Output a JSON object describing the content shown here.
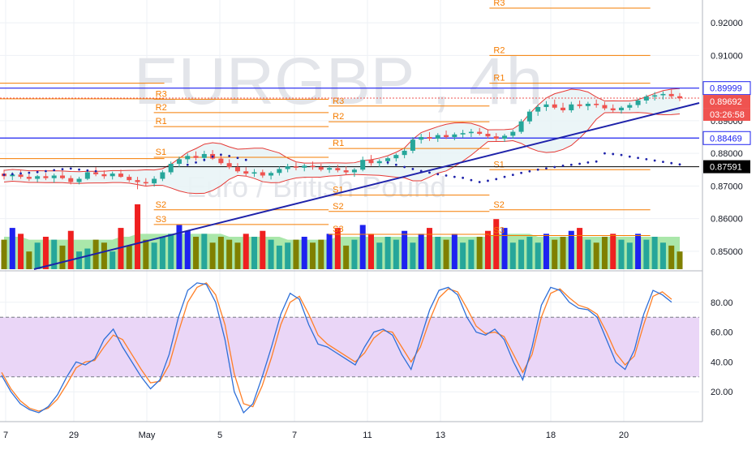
{
  "chart_data": [
    {
      "type": "candlestick",
      "watermark": {
        "symbol": "EURGBP",
        "separator": ",",
        "interval": "4h",
        "description": "Euro / British Pound"
      },
      "y_axis_ticks": [
        "0.92000",
        "0.91000",
        "0.90000",
        "0.89000",
        "0.88000",
        "0.87000",
        "0.86000",
        "0.85000"
      ],
      "ylim": [
        0.8445,
        0.927
      ],
      "x_axis_ticks": [
        "7",
        "29",
        "May",
        "5",
        "7",
        "11",
        "13",
        "18",
        "20"
      ],
      "price_labels": {
        "upper_line": "0.89999",
        "last_price": "0.89692",
        "countdown": "03:26:58",
        "lower_line": "0.88469",
        "black_line": "0.87591"
      },
      "colors": {
        "up": "#26a69a",
        "down": "#ef5350",
        "pivot_line": "#f57c00",
        "trendline": "#1e22aa",
        "bollinger": "#e53935",
        "horizontal_blue": "#1e22f0",
        "psar": "#1e22aa"
      },
      "pivots": [
        {
          "label": "R3",
          "value": 0.9245,
          "from": 0.7,
          "to": 0.93
        },
        {
          "label": "R2",
          "value": 0.91,
          "from": 0.7,
          "to": 0.93
        },
        {
          "label": "R1",
          "value": 0.9015,
          "from": 0.7,
          "to": 0.93
        },
        {
          "label": "R3",
          "value": 0.8966,
          "from": 0.22,
          "to": 0.47
        },
        {
          "label": "R2",
          "value": 0.8925,
          "from": 0.22,
          "to": 0.47
        },
        {
          "label": "R1",
          "value": 0.8882,
          "from": 0.22,
          "to": 0.47
        },
        {
          "label": "S1",
          "value": 0.8788,
          "from": 0.22,
          "to": 0.47
        },
        {
          "label": "R3",
          "value": 0.8945,
          "from": 0.47,
          "to": 0.7
        },
        {
          "label": "R2",
          "value": 0.8897,
          "from": 0.47,
          "to": 0.7
        },
        {
          "label": "R1",
          "value": 0.8815,
          "from": 0.47,
          "to": 0.7
        },
        {
          "label": "S1",
          "value": 0.875,
          "from": 0.7,
          "to": 0.93
        },
        {
          "label": "S1",
          "value": 0.8672,
          "from": 0.47,
          "to": 0.7
        },
        {
          "label": "S2",
          "value": 0.8627,
          "from": 0.22,
          "to": 0.47
        },
        {
          "label": "S2",
          "value": 0.8622,
          "from": 0.47,
          "to": 0.7
        },
        {
          "label": "S2",
          "value": 0.8627,
          "from": 0.7,
          "to": 0.93
        },
        {
          "label": "S3",
          "value": 0.8582,
          "from": 0.22,
          "to": 0.47
        },
        {
          "label": "S3",
          "value": 0.8552,
          "from": 0.47,
          "to": 0.7
        },
        {
          "label": "S3",
          "value": 0.8548,
          "from": 0.7,
          "to": 0.93
        }
      ],
      "extra_lines": [
        {
          "value": 0.9015,
          "from": 0.0,
          "to": 0.235
        },
        {
          "value": 0.8967,
          "from": 0.0,
          "to": 0.235
        },
        {
          "value": 0.8784,
          "from": 0.0,
          "to": 0.235
        }
      ],
      "candles": [
        {
          "o": 0.8738,
          "h": 0.875,
          "l": 0.872,
          "c": 0.873
        },
        {
          "o": 0.873,
          "h": 0.8742,
          "l": 0.8718,
          "c": 0.8735
        },
        {
          "o": 0.8735,
          "h": 0.8748,
          "l": 0.8722,
          "c": 0.8728
        },
        {
          "o": 0.8728,
          "h": 0.8736,
          "l": 0.8715,
          "c": 0.8722
        },
        {
          "o": 0.8722,
          "h": 0.8734,
          "l": 0.8712,
          "c": 0.873
        },
        {
          "o": 0.873,
          "h": 0.874,
          "l": 0.8718,
          "c": 0.8724
        },
        {
          "o": 0.8724,
          "h": 0.8738,
          "l": 0.871,
          "c": 0.8732
        },
        {
          "o": 0.8732,
          "h": 0.8745,
          "l": 0.872,
          "c": 0.8724
        },
        {
          "o": 0.8724,
          "h": 0.8732,
          "l": 0.8705,
          "c": 0.8712
        },
        {
          "o": 0.8712,
          "h": 0.8728,
          "l": 0.8705,
          "c": 0.8722
        },
        {
          "o": 0.8722,
          "h": 0.8748,
          "l": 0.8718,
          "c": 0.8742
        },
        {
          "o": 0.8742,
          "h": 0.8758,
          "l": 0.873,
          "c": 0.8736
        },
        {
          "o": 0.8736,
          "h": 0.8748,
          "l": 0.8722,
          "c": 0.873
        },
        {
          "o": 0.873,
          "h": 0.8744,
          "l": 0.872,
          "c": 0.8738
        },
        {
          "o": 0.8738,
          "h": 0.875,
          "l": 0.8725,
          "c": 0.8728
        },
        {
          "o": 0.8728,
          "h": 0.8735,
          "l": 0.8712,
          "c": 0.8718
        },
        {
          "o": 0.8718,
          "h": 0.8728,
          "l": 0.869,
          "c": 0.8712
        },
        {
          "o": 0.8712,
          "h": 0.8724,
          "l": 0.87,
          "c": 0.8708
        },
        {
          "o": 0.8708,
          "h": 0.873,
          "l": 0.8698,
          "c": 0.8722
        },
        {
          "o": 0.8722,
          "h": 0.8748,
          "l": 0.8715,
          "c": 0.8742
        },
        {
          "o": 0.8742,
          "h": 0.8775,
          "l": 0.8735,
          "c": 0.8768
        },
        {
          "o": 0.8768,
          "h": 0.879,
          "l": 0.8758,
          "c": 0.8782
        },
        {
          "o": 0.8782,
          "h": 0.88,
          "l": 0.877,
          "c": 0.8792
        },
        {
          "o": 0.8792,
          "h": 0.8806,
          "l": 0.8778,
          "c": 0.8786
        },
        {
          "o": 0.8786,
          "h": 0.8808,
          "l": 0.8775,
          "c": 0.8798
        },
        {
          "o": 0.8798,
          "h": 0.881,
          "l": 0.878,
          "c": 0.8784
        },
        {
          "o": 0.8784,
          "h": 0.8795,
          "l": 0.8765,
          "c": 0.877
        },
        {
          "o": 0.877,
          "h": 0.8782,
          "l": 0.8752,
          "c": 0.8758
        },
        {
          "o": 0.8758,
          "h": 0.877,
          "l": 0.874,
          "c": 0.8745
        },
        {
          "o": 0.8745,
          "h": 0.8758,
          "l": 0.873,
          "c": 0.8738
        },
        {
          "o": 0.8738,
          "h": 0.8752,
          "l": 0.8728,
          "c": 0.8742
        },
        {
          "o": 0.8742,
          "h": 0.875,
          "l": 0.8725,
          "c": 0.8732
        },
        {
          "o": 0.8732,
          "h": 0.8745,
          "l": 0.872,
          "c": 0.874
        },
        {
          "o": 0.874,
          "h": 0.876,
          "l": 0.8732,
          "c": 0.8752
        },
        {
          "o": 0.8752,
          "h": 0.8768,
          "l": 0.8742,
          "c": 0.876
        },
        {
          "o": 0.876,
          "h": 0.8772,
          "l": 0.8748,
          "c": 0.8756
        },
        {
          "o": 0.8756,
          "h": 0.8768,
          "l": 0.8745,
          "c": 0.8762
        },
        {
          "o": 0.8762,
          "h": 0.8775,
          "l": 0.875,
          "c": 0.8758
        },
        {
          "o": 0.8758,
          "h": 0.8768,
          "l": 0.8745,
          "c": 0.875
        },
        {
          "o": 0.875,
          "h": 0.8762,
          "l": 0.874,
          "c": 0.8755
        },
        {
          "o": 0.8755,
          "h": 0.8765,
          "l": 0.8742,
          "c": 0.8748
        },
        {
          "o": 0.8748,
          "h": 0.876,
          "l": 0.8735,
          "c": 0.8742
        },
        {
          "o": 0.8742,
          "h": 0.8755,
          "l": 0.8728,
          "c": 0.875
        },
        {
          "o": 0.875,
          "h": 0.879,
          "l": 0.8745,
          "c": 0.878
        },
        {
          "o": 0.878,
          "h": 0.8795,
          "l": 0.8762,
          "c": 0.877
        },
        {
          "o": 0.877,
          "h": 0.8782,
          "l": 0.8758,
          "c": 0.8776
        },
        {
          "o": 0.8776,
          "h": 0.879,
          "l": 0.8765,
          "c": 0.8785
        },
        {
          "o": 0.8785,
          "h": 0.88,
          "l": 0.8775,
          "c": 0.8795
        },
        {
          "o": 0.8795,
          "h": 0.8815,
          "l": 0.8785,
          "c": 0.8808
        },
        {
          "o": 0.8808,
          "h": 0.885,
          "l": 0.88,
          "c": 0.8842
        },
        {
          "o": 0.8842,
          "h": 0.886,
          "l": 0.883,
          "c": 0.885
        },
        {
          "o": 0.885,
          "h": 0.8865,
          "l": 0.8838,
          "c": 0.8845
        },
        {
          "o": 0.8845,
          "h": 0.8862,
          "l": 0.8835,
          "c": 0.8856
        },
        {
          "o": 0.8856,
          "h": 0.887,
          "l": 0.8844,
          "c": 0.885
        },
        {
          "o": 0.885,
          "h": 0.8864,
          "l": 0.884,
          "c": 0.8858
        },
        {
          "o": 0.8858,
          "h": 0.8872,
          "l": 0.8848,
          "c": 0.8862
        },
        {
          "o": 0.8862,
          "h": 0.8875,
          "l": 0.885,
          "c": 0.8866
        },
        {
          "o": 0.8866,
          "h": 0.8878,
          "l": 0.8855,
          "c": 0.886
        },
        {
          "o": 0.886,
          "h": 0.8872,
          "l": 0.8845,
          "c": 0.8852
        },
        {
          "o": 0.8852,
          "h": 0.8862,
          "l": 0.8838,
          "c": 0.8845
        },
        {
          "o": 0.8845,
          "h": 0.886,
          "l": 0.8835,
          "c": 0.8854
        },
        {
          "o": 0.8854,
          "h": 0.8872,
          "l": 0.8845,
          "c": 0.8866
        },
        {
          "o": 0.8866,
          "h": 0.8905,
          "l": 0.886,
          "c": 0.8898
        },
        {
          "o": 0.8898,
          "h": 0.8935,
          "l": 0.889,
          "c": 0.8928
        },
        {
          "o": 0.8928,
          "h": 0.895,
          "l": 0.8915,
          "c": 0.8942
        },
        {
          "o": 0.8942,
          "h": 0.896,
          "l": 0.893,
          "c": 0.895
        },
        {
          "o": 0.895,
          "h": 0.8965,
          "l": 0.8935,
          "c": 0.894
        },
        {
          "o": 0.894,
          "h": 0.8955,
          "l": 0.8925,
          "c": 0.8932
        },
        {
          "o": 0.8932,
          "h": 0.8958,
          "l": 0.8925,
          "c": 0.895
        },
        {
          "o": 0.895,
          "h": 0.8962,
          "l": 0.8938,
          "c": 0.8945
        },
        {
          "o": 0.8945,
          "h": 0.8958,
          "l": 0.8932,
          "c": 0.8952
        },
        {
          "o": 0.8952,
          "h": 0.8965,
          "l": 0.894,
          "c": 0.8948
        },
        {
          "o": 0.8948,
          "h": 0.8958,
          "l": 0.8932,
          "c": 0.8938
        },
        {
          "o": 0.8938,
          "h": 0.895,
          "l": 0.8925,
          "c": 0.8932
        },
        {
          "o": 0.8932,
          "h": 0.8945,
          "l": 0.8922,
          "c": 0.894
        },
        {
          "o": 0.894,
          "h": 0.8955,
          "l": 0.8932,
          "c": 0.8948
        },
        {
          "o": 0.8948,
          "h": 0.8968,
          "l": 0.894,
          "c": 0.8962
        },
        {
          "o": 0.8962,
          "h": 0.898,
          "l": 0.8952,
          "c": 0.8974
        },
        {
          "o": 0.8974,
          "h": 0.8988,
          "l": 0.8962,
          "c": 0.8978
        },
        {
          "o": 0.8978,
          "h": 0.899,
          "l": 0.8965,
          "c": 0.8982
        },
        {
          "o": 0.8982,
          "h": 0.8995,
          "l": 0.8968,
          "c": 0.8975
        },
        {
          "o": 0.8975,
          "h": 0.8985,
          "l": 0.896,
          "c": 0.8969
        }
      ],
      "psar": [
        0.8772,
        0.8765,
        0.8758,
        0.8752,
        0.8746,
        0.8741,
        0.8736,
        0.8732,
        0.8728,
        0.8725,
        0.8718,
        0.8712,
        0.8716,
        0.8721,
        0.8728,
        0.8734,
        0.874,
        0.8745,
        0.875,
        0.8754,
        0.8758,
        0.8762,
        0.8765,
        0.8768,
        0.8772,
        0.8775,
        0.88,
        0.8798,
        0.8795,
        0.879,
        0.8786,
        0.8782,
        0.8778,
        0.8774,
        0.877,
        0.8766
      ],
      "volume": [
        10,
        14,
        12,
        6,
        9,
        11,
        10,
        8,
        13,
        6,
        7,
        10,
        9,
        6,
        14,
        8,
        22,
        10,
        9,
        11,
        12,
        15,
        13,
        11,
        12,
        9,
        11,
        10,
        9,
        12,
        11,
        13,
        10,
        8,
        9,
        10,
        11,
        9,
        10,
        12,
        14,
        8,
        10,
        15,
        12,
        9,
        11,
        10,
        13,
        9,
        12,
        14,
        11,
        10,
        12,
        9,
        10,
        11,
        13,
        17,
        14,
        9,
        10,
        11,
        9,
        12,
        10,
        11,
        13,
        14,
        10,
        9,
        11,
        12,
        10,
        9,
        12,
        10,
        11,
        9,
        8,
        6
      ],
      "volume_ma": [
        11,
        11,
        11,
        10,
        10,
        10,
        10,
        10,
        10,
        10,
        10,
        10,
        10,
        10,
        11,
        11,
        12,
        12,
        12,
        12,
        12,
        12,
        12,
        12,
        12,
        12,
        12,
        11,
        11,
        11,
        11,
        11,
        11,
        11,
        10,
        10,
        10,
        10,
        10,
        10,
        11,
        11,
        11,
        11,
        11,
        11,
        11,
        11,
        11,
        11,
        11,
        11,
        11,
        11,
        11,
        11,
        11,
        11,
        11,
        12,
        12,
        12,
        12,
        12,
        11,
        11,
        11,
        11,
        11,
        11,
        11,
        11,
        11,
        11,
        11,
        11,
        11,
        11,
        11,
        11,
        11,
        11
      ]
    },
    {
      "type": "line",
      "y_axis_ticks": [
        "80.00",
        "60.00",
        "40.00",
        "20.00"
      ],
      "ylim": [
        0,
        100
      ],
      "band": [
        30,
        70
      ],
      "k": [
        31,
        20,
        12,
        8,
        6,
        10,
        18,
        30,
        40,
        38,
        42,
        55,
        62,
        50,
        40,
        30,
        22,
        28,
        45,
        70,
        88,
        93,
        92,
        80,
        55,
        20,
        6,
        12,
        30,
        50,
        72,
        86,
        82,
        65,
        52,
        50,
        46,
        42,
        38,
        50,
        60,
        62,
        58,
        45,
        35,
        55,
        75,
        88,
        90,
        85,
        70,
        60,
        58,
        62,
        55,
        40,
        28,
        50,
        78,
        90,
        88,
        80,
        76,
        75,
        70,
        55,
        40,
        35,
        48,
        72,
        88,
        85,
        80
      ],
      "d": [
        33,
        22,
        14,
        9,
        7,
        9,
        15,
        25,
        36,
        40,
        41,
        50,
        58,
        55,
        45,
        35,
        26,
        27,
        38,
        60,
        80,
        90,
        93,
        85,
        65,
        32,
        12,
        10,
        24,
        43,
        65,
        80,
        84,
        72,
        58,
        52,
        48,
        44,
        40,
        46,
        56,
        61,
        60,
        50,
        40,
        50,
        68,
        83,
        89,
        87,
        76,
        64,
        59,
        60,
        57,
        45,
        33,
        45,
        70,
        86,
        89,
        83,
        78,
        76,
        72,
        60,
        46,
        38,
        44,
        65,
        84,
        87,
        82
      ]
    }
  ]
}
